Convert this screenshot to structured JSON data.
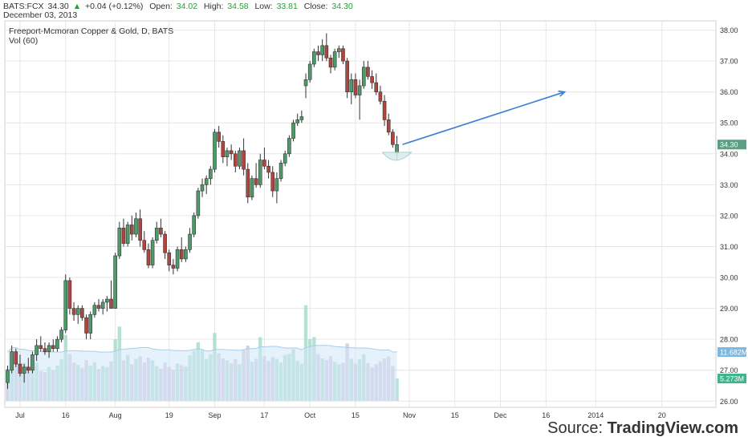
{
  "header": {
    "symbol": "BATS:FCX",
    "last": "34.30",
    "arrow": "▲",
    "change": "+0.04 (+0.12%)",
    "open_label": "Open:",
    "open": "34.02",
    "high_label": "High:",
    "high": "34.58",
    "low_label": "Low:",
    "low": "33.81",
    "close_label": "Close:",
    "close": "34.30",
    "date": "December 03, 2013"
  },
  "source": {
    "prefix": "Source: ",
    "brand": "TradingView.com"
  },
  "colors": {
    "up": "#4f9a6b",
    "down": "#b0453f",
    "grid": "#e6e6e6",
    "arrow": "#3a7fd0",
    "vol_up": "#9ed8c6",
    "vol_down": "#c9bfd8",
    "vol_ma_fill": "#cfe6f7",
    "vol_ma_line": "#a9cde8"
  },
  "chart_data": {
    "type": "candlestick",
    "title": "Freeport-Mcmoran Copper & Gold, D, BATS",
    "subtitle": "Vol (60)",
    "ylim": [
      25.8,
      38.3
    ],
    "yticks": [
      "26.00",
      "27.00",
      "28.00",
      "29.00",
      "30.00",
      "31.00",
      "32.00",
      "33.00",
      "34.00",
      "35.00",
      "36.00",
      "37.00",
      "38.00"
    ],
    "xticks": [
      {
        "label": "Jul",
        "i": 3
      },
      {
        "label": "16",
        "i": 14
      },
      {
        "label": "Aug",
        "i": 26
      },
      {
        "label": "19",
        "i": 39
      },
      {
        "label": "Sep",
        "i": 50
      },
      {
        "label": "17",
        "i": 62
      },
      {
        "label": "Oct",
        "i": 73
      },
      {
        "label": "15",
        "i": 84
      },
      {
        "label": "Nov",
        "i": 97
      },
      {
        "label": "15",
        "i": 108
      },
      {
        "label": "Dec",
        "i": 119
      },
      {
        "label": "16",
        "i": 130
      },
      {
        "label": "2014",
        "i": 142
      },
      {
        "label": "20",
        "i": 158
      }
    ],
    "last_price_label": "34.30",
    "vol_ma_label": "11.682M",
    "vol_label": "5.273M",
    "candles": [
      [
        26.6,
        27.15,
        26.4,
        27.0
      ],
      [
        27.0,
        27.8,
        26.9,
        27.6
      ],
      [
        27.6,
        27.7,
        27.1,
        27.2
      ],
      [
        27.2,
        27.5,
        26.8,
        26.9
      ],
      [
        26.9,
        27.2,
        26.6,
        27.1
      ],
      [
        27.1,
        27.4,
        26.9,
        27.0
      ],
      [
        27.0,
        27.6,
        26.9,
        27.5
      ],
      [
        27.5,
        28.0,
        27.3,
        27.8
      ],
      [
        27.8,
        28.1,
        27.6,
        27.7
      ],
      [
        27.7,
        27.9,
        27.5,
        27.6
      ],
      [
        27.6,
        27.9,
        27.4,
        27.8
      ],
      [
        27.8,
        28.0,
        27.6,
        27.7
      ],
      [
        27.7,
        28.1,
        27.6,
        28.0
      ],
      [
        28.0,
        28.4,
        27.9,
        28.3
      ],
      [
        28.3,
        30.1,
        28.2,
        29.9
      ],
      [
        29.9,
        30.0,
        28.8,
        29.0
      ],
      [
        29.0,
        29.2,
        28.6,
        28.8
      ],
      [
        28.8,
        29.1,
        28.5,
        29.0
      ],
      [
        29.0,
        29.1,
        28.6,
        28.7
      ],
      [
        28.7,
        28.8,
        28.0,
        28.2
      ],
      [
        28.2,
        28.9,
        28.0,
        28.8
      ],
      [
        28.8,
        29.2,
        28.7,
        29.1
      ],
      [
        29.1,
        29.3,
        28.9,
        29.0
      ],
      [
        29.0,
        29.3,
        28.8,
        29.2
      ],
      [
        29.2,
        29.4,
        28.9,
        29.3
      ],
      [
        29.3,
        29.9,
        29.0,
        29.0
      ],
      [
        29.0,
        30.8,
        29.0,
        30.7
      ],
      [
        30.7,
        31.8,
        30.6,
        31.6
      ],
      [
        31.6,
        31.9,
        31.0,
        31.1
      ],
      [
        31.1,
        31.8,
        31.0,
        31.7
      ],
      [
        31.7,
        32.0,
        31.2,
        31.4
      ],
      [
        31.4,
        32.1,
        31.3,
        31.9
      ],
      [
        31.9,
        32.2,
        31.0,
        31.2
      ],
      [
        31.2,
        31.5,
        30.8,
        30.9
      ],
      [
        30.9,
        31.1,
        30.3,
        30.4
      ],
      [
        30.4,
        31.3,
        30.3,
        31.2
      ],
      [
        31.2,
        31.8,
        31.1,
        31.6
      ],
      [
        31.6,
        31.9,
        31.3,
        31.4
      ],
      [
        31.4,
        31.5,
        30.6,
        30.8
      ],
      [
        30.8,
        30.9,
        30.2,
        30.4
      ],
      [
        30.4,
        30.6,
        30.1,
        30.3
      ],
      [
        30.3,
        31.0,
        30.2,
        30.9
      ],
      [
        30.9,
        31.3,
        30.5,
        30.6
      ],
      [
        30.6,
        31.0,
        30.5,
        30.9
      ],
      [
        30.9,
        31.6,
        30.8,
        31.4
      ],
      [
        31.4,
        32.1,
        31.3,
        32.0
      ],
      [
        32.0,
        32.9,
        31.9,
        32.8
      ],
      [
        32.8,
        33.2,
        32.6,
        33.0
      ],
      [
        33.0,
        33.3,
        32.7,
        33.2
      ],
      [
        33.2,
        33.6,
        33.0,
        33.5
      ],
      [
        33.5,
        34.8,
        33.4,
        34.7
      ],
      [
        34.7,
        34.9,
        34.2,
        34.4
      ],
      [
        34.4,
        34.6,
        33.7,
        33.9
      ],
      [
        33.9,
        34.2,
        33.6,
        34.1
      ],
      [
        34.1,
        34.3,
        33.8,
        34.0
      ],
      [
        34.0,
        34.1,
        33.4,
        33.6
      ],
      [
        33.6,
        34.2,
        33.5,
        34.1
      ],
      [
        34.1,
        34.5,
        33.3,
        33.5
      ],
      [
        33.5,
        33.7,
        32.4,
        32.6
      ],
      [
        32.6,
        33.3,
        32.5,
        33.2
      ],
      [
        33.2,
        33.7,
        32.9,
        33.0
      ],
      [
        33.0,
        34.0,
        32.9,
        33.8
      ],
      [
        33.8,
        34.2,
        33.5,
        33.6
      ],
      [
        33.6,
        33.8,
        33.2,
        33.4
      ],
      [
        33.4,
        33.6,
        32.6,
        32.8
      ],
      [
        32.8,
        33.4,
        32.4,
        33.2
      ],
      [
        33.2,
        33.8,
        33.1,
        33.7
      ],
      [
        33.7,
        34.1,
        33.6,
        34.0
      ],
      [
        34.0,
        34.6,
        33.9,
        34.5
      ],
      [
        34.5,
        35.1,
        34.4,
        35.0
      ],
      [
        35.0,
        35.3,
        34.9,
        35.1
      ],
      [
        35.1,
        35.4,
        35.0,
        35.2
      ],
      [
        36.2,
        36.6,
        35.8,
        36.4
      ],
      [
        36.4,
        37.0,
        36.3,
        36.9
      ],
      [
        36.9,
        37.4,
        36.8,
        37.3
      ],
      [
        37.3,
        37.5,
        37.0,
        37.2
      ],
      [
        37.2,
        37.7,
        37.0,
        37.5
      ],
      [
        37.5,
        37.9,
        37.0,
        37.1
      ],
      [
        37.1,
        37.2,
        36.6,
        36.8
      ],
      [
        36.8,
        37.4,
        36.7,
        37.3
      ],
      [
        37.3,
        37.5,
        37.1,
        37.4
      ],
      [
        37.4,
        37.5,
        36.9,
        37.0
      ],
      [
        37.0,
        37.1,
        35.8,
        36.0
      ],
      [
        36.0,
        36.6,
        35.6,
        36.4
      ],
      [
        36.4,
        36.6,
        35.8,
        35.9
      ],
      [
        35.9,
        36.4,
        35.1,
        36.2
      ],
      [
        36.2,
        37.0,
        36.1,
        36.8
      ],
      [
        36.8,
        37.0,
        36.4,
        36.5
      ],
      [
        36.5,
        36.7,
        36.1,
        36.3
      ],
      [
        36.3,
        36.6,
        35.9,
        36.0
      ],
      [
        36.0,
        36.2,
        35.6,
        35.7
      ],
      [
        35.7,
        35.9,
        34.9,
        35.1
      ],
      [
        35.1,
        35.3,
        34.6,
        34.7
      ],
      [
        34.7,
        34.8,
        34.2,
        34.3
      ],
      [
        34.02,
        34.58,
        33.81,
        34.3
      ]
    ],
    "volumes": [
      [
        7.6,
        "d"
      ],
      [
        11.0,
        "u"
      ],
      [
        9.5,
        "d"
      ],
      [
        8.0,
        "d"
      ],
      [
        9.0,
        "u"
      ],
      [
        7.5,
        "d"
      ],
      [
        8.5,
        "u"
      ],
      [
        9.0,
        "u"
      ],
      [
        7.0,
        "d"
      ],
      [
        6.8,
        "d"
      ],
      [
        8.0,
        "u"
      ],
      [
        7.2,
        "d"
      ],
      [
        8.3,
        "u"
      ],
      [
        9.8,
        "u"
      ],
      [
        15.5,
        "u"
      ],
      [
        11.0,
        "d"
      ],
      [
        9.0,
        "d"
      ],
      [
        8.5,
        "u"
      ],
      [
        7.8,
        "d"
      ],
      [
        9.6,
        "d"
      ],
      [
        8.3,
        "u"
      ],
      [
        9.1,
        "u"
      ],
      [
        7.5,
        "d"
      ],
      [
        8.2,
        "u"
      ],
      [
        7.9,
        "u"
      ],
      [
        9.3,
        "d"
      ],
      [
        14.5,
        "u"
      ],
      [
        17.5,
        "u"
      ],
      [
        9.5,
        "d"
      ],
      [
        10.8,
        "u"
      ],
      [
        8.6,
        "d"
      ],
      [
        9.9,
        "u"
      ],
      [
        10.5,
        "d"
      ],
      [
        9.0,
        "d"
      ],
      [
        10.2,
        "d"
      ],
      [
        9.5,
        "u"
      ],
      [
        8.2,
        "u"
      ],
      [
        7.6,
        "d"
      ],
      [
        9.0,
        "d"
      ],
      [
        8.0,
        "d"
      ],
      [
        7.3,
        "d"
      ],
      [
        8.8,
        "u"
      ],
      [
        8.4,
        "d"
      ],
      [
        8.1,
        "u"
      ],
      [
        10.7,
        "u"
      ],
      [
        11.8,
        "u"
      ],
      [
        13.8,
        "u"
      ],
      [
        12.0,
        "u"
      ],
      [
        9.9,
        "u"
      ],
      [
        11.0,
        "u"
      ],
      [
        16.0,
        "u"
      ],
      [
        11.2,
        "d"
      ],
      [
        10.0,
        "d"
      ],
      [
        9.5,
        "u"
      ],
      [
        8.9,
        "d"
      ],
      [
        9.8,
        "d"
      ],
      [
        8.6,
        "u"
      ],
      [
        12.0,
        "d"
      ],
      [
        13.0,
        "d"
      ],
      [
        9.2,
        "u"
      ],
      [
        9.9,
        "d"
      ],
      [
        15.0,
        "u"
      ],
      [
        10.5,
        "d"
      ],
      [
        9.4,
        "d"
      ],
      [
        10.3,
        "d"
      ],
      [
        9.9,
        "u"
      ],
      [
        9.0,
        "u"
      ],
      [
        10.8,
        "u"
      ],
      [
        11.1,
        "u"
      ],
      [
        12.2,
        "u"
      ],
      [
        9.4,
        "u"
      ],
      [
        8.8,
        "u"
      ],
      [
        22.5,
        "u"
      ],
      [
        14.5,
        "u"
      ],
      [
        15.0,
        "u"
      ],
      [
        11.0,
        "d"
      ],
      [
        10.0,
        "u"
      ],
      [
        9.6,
        "d"
      ],
      [
        10.5,
        "d"
      ],
      [
        9.2,
        "u"
      ],
      [
        8.6,
        "u"
      ],
      [
        9.0,
        "d"
      ],
      [
        13.5,
        "d"
      ],
      [
        9.9,
        "u"
      ],
      [
        8.8,
        "d"
      ],
      [
        9.8,
        "u"
      ],
      [
        11.0,
        "u"
      ],
      [
        8.9,
        "d"
      ],
      [
        7.9,
        "d"
      ],
      [
        8.6,
        "d"
      ],
      [
        9.3,
        "d"
      ],
      [
        10.0,
        "d"
      ],
      [
        10.4,
        "d"
      ],
      [
        8.2,
        "d"
      ],
      [
        5.273,
        "u"
      ]
    ]
  }
}
